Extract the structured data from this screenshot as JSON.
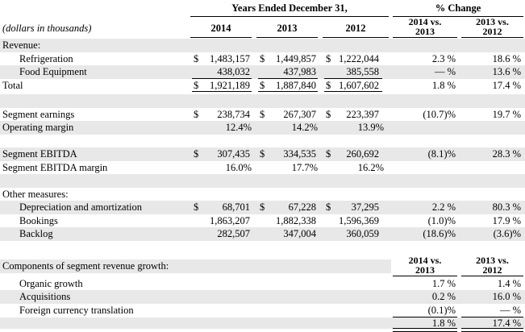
{
  "header": {
    "years_title": "Years Ended December 31,",
    "pct_title": "% Change",
    "units": "(dollars in thousands)",
    "years": [
      "2014",
      "2013",
      "2012"
    ],
    "cmp1_line1": "2014 vs.",
    "cmp1_line2": "2013",
    "cmp2_line1": "2013 vs.",
    "cmp2_line2": "2012"
  },
  "revenue": {
    "label": "Revenue:",
    "refrigeration": {
      "label": "Refrigeration",
      "d1": "$",
      "v2014": "1,483,157",
      "d2": "$",
      "v2013": "1,449,857",
      "d3": "$",
      "v2012": "1,222,044",
      "p1": "2.3 %",
      "p2": "18.6 %"
    },
    "food": {
      "label": "Food Equipment",
      "v2014": "438,032",
      "v2013": "437,983",
      "v2012": "385,558",
      "p1": "— %",
      "p2": "13.6 %"
    },
    "total": {
      "label": "Total",
      "d1": "$",
      "v2014": "1,921,189",
      "d2": "$",
      "v2013": "1,887,840",
      "d3": "$",
      "v2012": "1,607,602",
      "p1": "1.8 %",
      "p2": "17.4 %"
    }
  },
  "segment_earnings": {
    "label": "Segment earnings",
    "d1": "$",
    "v2014": "238,734",
    "d2": "$",
    "v2013": "267,307",
    "d3": "$",
    "v2012": "223,397",
    "p1": "(10.7)%",
    "p2": "19.7 %"
  },
  "operating_margin": {
    "label": "Operating margin",
    "v2014": "12.4%",
    "v2013": "14.2%",
    "v2012": "13.9%"
  },
  "segment_ebitda": {
    "label": "Segment EBITDA",
    "d1": "$",
    "v2014": "307,435",
    "d2": "$",
    "v2013": "334,535",
    "d3": "$",
    "v2012": "260,692",
    "p1": "(8.1)%",
    "p2": "28.3 %"
  },
  "ebitda_margin": {
    "label": "Segment EBITDA margin",
    "v2014": "16.0%",
    "v2013": "17.7%",
    "v2012": "16.2%"
  },
  "other": {
    "label": "Other measures:",
    "depreciation": {
      "label": "Depreciation and amortization",
      "d1": "$",
      "v2014": "68,701",
      "d2": "$",
      "v2013": "67,228",
      "d3": "$",
      "v2012": "37,295",
      "p1": "2.2 %",
      "p2": "80.3 %"
    },
    "bookings": {
      "label": "Bookings",
      "v2014": "1,863,207",
      "v2013": "1,882,338",
      "v2012": "1,596,369",
      "p1": "(1.0)%",
      "p2": "17.9 %"
    },
    "backlog": {
      "label": "Backlog",
      "v2014": "282,507",
      "v2013": "347,004",
      "v2012": "360,059",
      "p1": "(18.6)%",
      "p2": "(3.6)%"
    }
  },
  "components": {
    "label": "Components of segment revenue growth:",
    "organic": {
      "label": "Organic growth",
      "p1": "1.7 %",
      "p2": "1.4 %"
    },
    "acquisitions": {
      "label": "Acquisitions",
      "p1": "0.2 %",
      "p2": "16.0 %"
    },
    "fx": {
      "label": "Foreign currency translation",
      "p1": "(0.1)%",
      "p2": "— %"
    },
    "total": {
      "p1": "1.8 %",
      "p2": "17.4 %"
    }
  }
}
